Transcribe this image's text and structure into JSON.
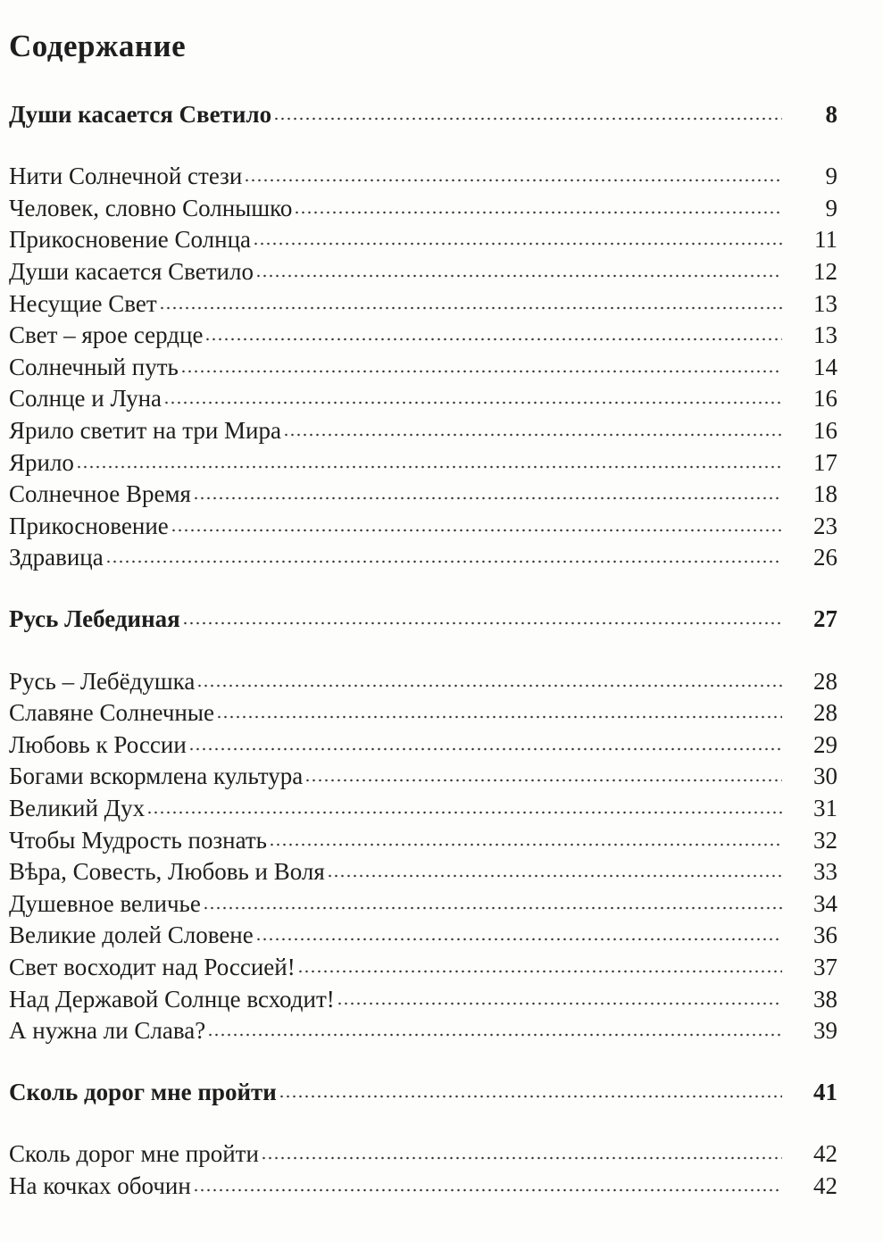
{
  "title": "Содержание",
  "sections": [
    {
      "heading": "Души касается Светило",
      "page": "8",
      "entries": [
        {
          "title": "Нити Солнечной стези",
          "page": "9"
        },
        {
          "title": "Человек, словно Солнышко",
          "page": "9"
        },
        {
          "title": "Прикосновение Солнца",
          "page": "11"
        },
        {
          "title": "Души касается Светило",
          "page": "12"
        },
        {
          "title": "Несущие Свет",
          "page": "13"
        },
        {
          "title": "Свет – ярое сердце",
          "page": "13"
        },
        {
          "title": "Солнечный путь",
          "page": "14"
        },
        {
          "title": "Солнце и Луна",
          "page": "16"
        },
        {
          "title": "Ярило светит на три Мира",
          "page": "16"
        },
        {
          "title": "Ярило",
          "page": "17"
        },
        {
          "title": "Солнечное Время",
          "page": "18"
        },
        {
          "title": "Прикосновение",
          "page": "23"
        },
        {
          "title": "Здравица",
          "page": "26"
        }
      ]
    },
    {
      "heading": "Русь Лебединая",
      "page": "27",
      "entries": [
        {
          "title": "Русь – Лебёдушка",
          "page": "28"
        },
        {
          "title": "Славяне Солнечные",
          "page": "28"
        },
        {
          "title": "Любовь к России",
          "page": "29"
        },
        {
          "title": "Богами вскормлена культура",
          "page": "30"
        },
        {
          "title": "Великий Дух",
          "page": "31"
        },
        {
          "title": "Чтобы Мудрость познать",
          "page": "32"
        },
        {
          "title": "Вѣра, Совесть, Любовь и Воля",
          "page": "33"
        },
        {
          "title": "Душевное величье",
          "page": "34"
        },
        {
          "title": "Великие долей Словене",
          "page": "36"
        },
        {
          "title": "Свет восходит над Россией!",
          "page": "37"
        },
        {
          "title": "Над Державой Солнце всходит!",
          "page": "38"
        },
        {
          "title": "А нужна ли Слава?",
          "page": "39"
        }
      ]
    },
    {
      "heading": "Сколь дорог мне пройти",
      "page": "41",
      "entries": [
        {
          "title": "Сколь дорог мне пройти",
          "page": "42"
        },
        {
          "title": "На кочках обочин",
          "page": "42"
        }
      ]
    }
  ]
}
